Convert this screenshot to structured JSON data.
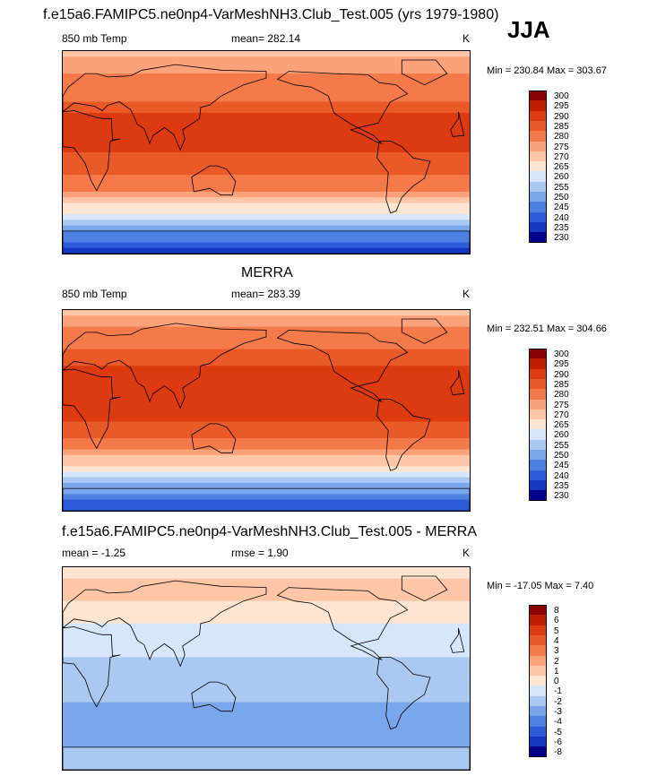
{
  "figure": {
    "season": "JJA",
    "title": "f.e15a6.FAMIPC5.ne0np4-VarMeshNH3.Club_Test.005 (yrs 1979-1980)"
  },
  "panels": [
    {
      "id": "model",
      "heading": "",
      "left_label": "850 mb Temp",
      "center_label": "mean= 282.14",
      "units": "K",
      "minmax": "Min = 230.84 Max = 303.67"
    },
    {
      "id": "merra",
      "heading": "MERRA",
      "left_label": "850 mb Temp",
      "center_label": "mean= 283.39",
      "units": "K",
      "minmax": "Min = 232.51 Max = 304.66"
    },
    {
      "id": "diff",
      "heading": "f.e15a6.FAMIPC5.ne0np4-VarMeshNH3.Club_Test.005 - MERRA",
      "left_label": "mean =  -1.25",
      "center_label": "rmse =   1.90",
      "units": "K",
      "minmax": "Min = -17.05 Max =   7.40"
    }
  ],
  "chart_data": [
    {
      "type": "heatmap",
      "title": "850 mb Temp",
      "subtitle": "mean= 282.14",
      "units": "K",
      "min": 230.84,
      "max": 303.67,
      "mean": 282.14,
      "levels": [
        "300",
        "295",
        "290",
        "285",
        "280",
        "275",
        "270",
        "265",
        "260",
        "255",
        "250",
        "245",
        "240",
        "235",
        "230"
      ],
      "colors": [
        "#8b0000",
        "#bf1e00",
        "#dc3a10",
        "#ea5a28",
        "#f47a4a",
        "#fba27a",
        "#fdc6a6",
        "#fde5d2",
        "#d6e6fb",
        "#a9c9f3",
        "#7aa7ec",
        "#4d80e3",
        "#2d5ad9",
        "#1436c0",
        "#00008b"
      ],
      "zonal_profile_K": [
        {
          "lat": 90,
          "value": 272
        },
        {
          "lat": 70,
          "value": 280
        },
        {
          "lat": 50,
          "value": 284
        },
        {
          "lat": 30,
          "value": 291
        },
        {
          "lat": 10,
          "value": 291
        },
        {
          "lat": -10,
          "value": 289
        },
        {
          "lat": -30,
          "value": 282
        },
        {
          "lat": -50,
          "value": 268
        },
        {
          "lat": -70,
          "value": 250
        },
        {
          "lat": -90,
          "value": 238
        }
      ]
    },
    {
      "type": "heatmap",
      "title": "MERRA",
      "subtitle": "mean= 283.39",
      "units": "K",
      "min": 232.51,
      "max": 304.66,
      "mean": 283.39,
      "levels": [
        "300",
        "295",
        "290",
        "285",
        "280",
        "275",
        "270",
        "265",
        "260",
        "255",
        "250",
        "245",
        "240",
        "235",
        "230"
      ],
      "colors": [
        "#8b0000",
        "#bf1e00",
        "#dc3a10",
        "#ea5a28",
        "#f47a4a",
        "#fba27a",
        "#fdc6a6",
        "#fde5d2",
        "#d6e6fb",
        "#a9c9f3",
        "#7aa7ec",
        "#4d80e3",
        "#2d5ad9",
        "#1436c0",
        "#00008b"
      ],
      "zonal_profile_K": [
        {
          "lat": 90,
          "value": 273
        },
        {
          "lat": 70,
          "value": 281
        },
        {
          "lat": 50,
          "value": 286
        },
        {
          "lat": 30,
          "value": 293
        },
        {
          "lat": 10,
          "value": 292
        },
        {
          "lat": -10,
          "value": 290
        },
        {
          "lat": -30,
          "value": 283
        },
        {
          "lat": -50,
          "value": 269
        },
        {
          "lat": -70,
          "value": 252
        },
        {
          "lat": -90,
          "value": 240
        }
      ]
    },
    {
      "type": "heatmap",
      "title": "f.e15a6.FAMIPC5.ne0np4-VarMeshNH3.Club_Test.005 - MERRA",
      "subtitle": "mean =  -1.25  rmse =   1.90",
      "units": "K",
      "min": -17.05,
      "max": 7.4,
      "mean": -1.25,
      "rmse": 1.9,
      "levels": [
        "8",
        "6",
        "5",
        "4",
        "3",
        "2",
        "1",
        "0",
        "-1",
        "-2",
        "-3",
        "-4",
        "-5",
        "-6",
        "-8"
      ],
      "colors": [
        "#8b0000",
        "#bf1e00",
        "#dc3a10",
        "#ea5a28",
        "#f47a4a",
        "#fba27a",
        "#fdc6a6",
        "#fde5d2",
        "#d6e6fb",
        "#a9c9f3",
        "#7aa7ec",
        "#4d80e3",
        "#2d5ad9",
        "#1436c0",
        "#00008b"
      ],
      "zonal_profile_K": [
        {
          "lat": 90,
          "value": 0.5
        },
        {
          "lat": 70,
          "value": 1.5
        },
        {
          "lat": 50,
          "value": 0.5
        },
        {
          "lat": 30,
          "value": -0.5
        },
        {
          "lat": 10,
          "value": -1.0
        },
        {
          "lat": -10,
          "value": -1.5
        },
        {
          "lat": -30,
          "value": -2.0
        },
        {
          "lat": -50,
          "value": -2.5
        },
        {
          "lat": -70,
          "value": -2.0
        },
        {
          "lat": -90,
          "value": -1.0
        }
      ]
    }
  ]
}
